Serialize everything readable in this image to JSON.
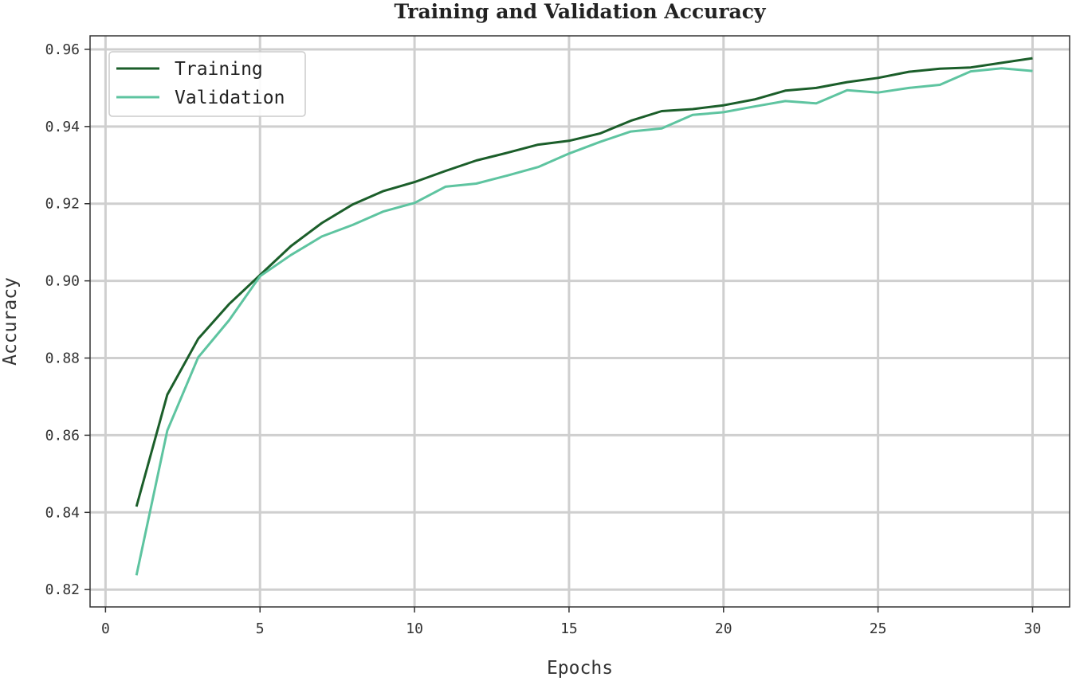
{
  "chart_data": {
    "type": "line",
    "title": "Training and Validation Accuracy",
    "xlabel": "Epochs",
    "ylabel": "Accuracy",
    "xlim": [
      -0.5,
      31.2
    ],
    "ylim": [
      0.8155,
      0.9635
    ],
    "xticks": [
      0,
      5,
      10,
      15,
      20,
      25,
      30
    ],
    "xtick_labels": [
      "0",
      "5",
      "10",
      "15",
      "20",
      "25",
      "30"
    ],
    "yticks": [
      0.82,
      0.84,
      0.86,
      0.88,
      0.9,
      0.92,
      0.94,
      0.96
    ],
    "ytick_labels": [
      "0.82",
      "0.84",
      "0.86",
      "0.88",
      "0.90",
      "0.92",
      "0.94",
      "0.96"
    ],
    "grid": true,
    "legend_position": "top-left",
    "x": [
      1,
      2,
      3,
      4,
      5,
      6,
      7,
      8,
      9,
      10,
      11,
      12,
      13,
      14,
      15,
      16,
      17,
      18,
      19,
      20,
      21,
      22,
      23,
      24,
      25,
      26,
      27,
      28,
      29,
      30
    ],
    "series": [
      {
        "name": "Training",
        "color": "#1b5e2a",
        "values": [
          0.8415,
          0.8705,
          0.885,
          0.894,
          0.9015,
          0.909,
          0.915,
          0.9198,
          0.9233,
          0.9256,
          0.9285,
          0.9312,
          0.9332,
          0.9353,
          0.9363,
          0.9382,
          0.9415,
          0.944,
          0.9445,
          0.9455,
          0.947,
          0.9493,
          0.95,
          0.9515,
          0.9526,
          0.9542,
          0.955,
          0.9553,
          0.9565,
          0.9577
        ]
      },
      {
        "name": "Validation",
        "color": "#5ec4a0",
        "values": [
          0.8237,
          0.8612,
          0.8802,
          0.8898,
          0.9012,
          0.9067,
          0.9115,
          0.9145,
          0.918,
          0.9202,
          0.9244,
          0.9252,
          0.9273,
          0.9295,
          0.933,
          0.936,
          0.9387,
          0.9395,
          0.943,
          0.9437,
          0.9452,
          0.9466,
          0.946,
          0.9494,
          0.9488,
          0.95,
          0.9508,
          0.9543,
          0.9551,
          0.9544
        ]
      }
    ]
  }
}
